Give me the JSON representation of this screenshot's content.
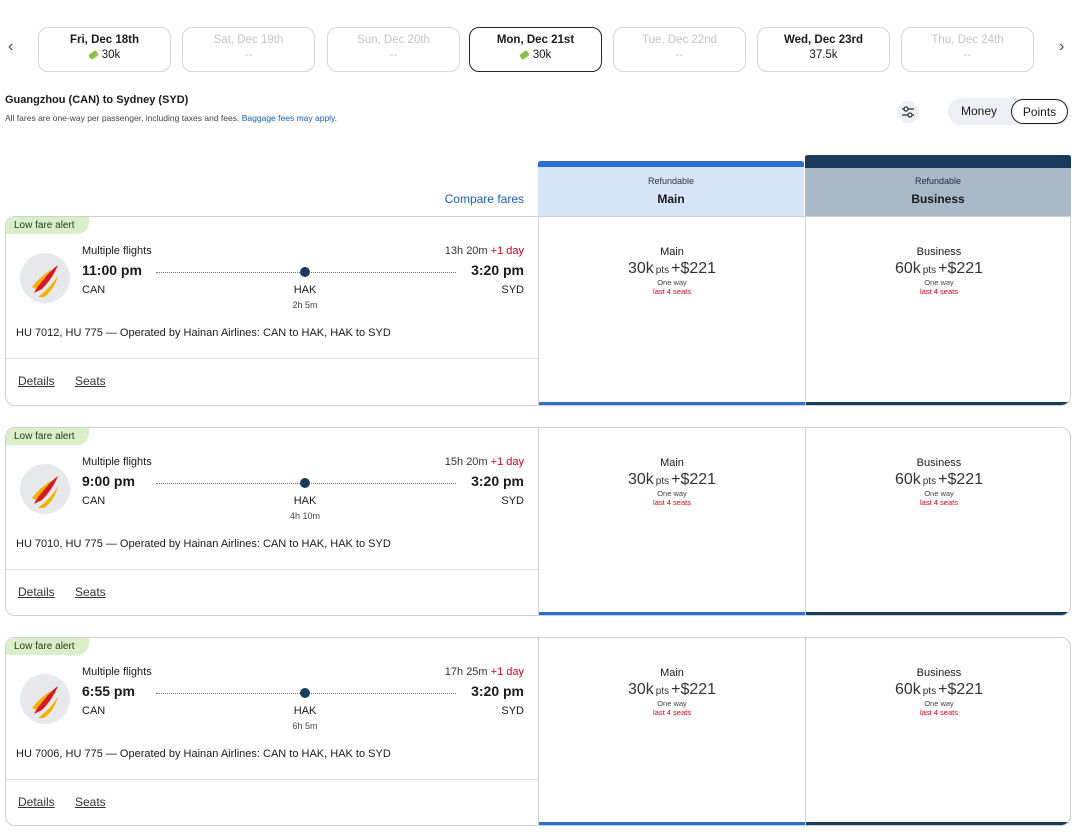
{
  "dates": [
    {
      "day": "Fri, Dec 18th",
      "price": "30k",
      "deal": true,
      "available": true
    },
    {
      "day": "Sat, Dec 19th",
      "price": "--",
      "deal": false,
      "available": false
    },
    {
      "day": "Sun, Dec 20th",
      "price": "--",
      "deal": false,
      "available": false
    },
    {
      "day": "Mon, Dec 21st",
      "price": "30k",
      "deal": true,
      "available": true,
      "selected": true
    },
    {
      "day": "Tue, Dec 22nd",
      "price": "--",
      "deal": false,
      "available": false
    },
    {
      "day": "Wed, Dec 23rd",
      "price": "37.5k",
      "deal": false,
      "available": true
    },
    {
      "day": "Thu, Dec 24th",
      "price": "--",
      "deal": false,
      "available": false
    }
  ],
  "route": {
    "title": "Guangzhou (CAN) to Sydney (SYD)",
    "note": "All fares are one-way per passenger, including taxes and fees.",
    "baggage": "Baggage fees may apply."
  },
  "toggle": {
    "money": "Money",
    "points": "Points"
  },
  "compare": "Compare fares",
  "columns": [
    {
      "label": "Refundable",
      "cabin": "Main"
    },
    {
      "label": "Refundable",
      "cabin": "Business"
    }
  ],
  "flights": [
    {
      "badge": "Low fare alert",
      "type": "Multiple flights",
      "duration": "13h 20m",
      "plus": "+1 day",
      "depart": "11:00 pm",
      "arrive": "3:20 pm",
      "from": "CAN",
      "stop": "HAK",
      "layover": "2h 5m",
      "to": "SYD",
      "operated": "HU 7012, HU 775 — Operated by Hainan Airlines: CAN to HAK, HAK to SYD",
      "details": "Details",
      "seats": "Seats",
      "fares": [
        {
          "cabin": "Main",
          "points": "30k",
          "unit": "pts",
          "money": "+$221",
          "way": "One way",
          "left": "last 4 seats"
        },
        {
          "cabin": "Business",
          "points": "60k",
          "unit": "pts",
          "money": "+$221",
          "way": "One way",
          "left": "last 4 seats"
        }
      ]
    },
    {
      "badge": "Low fare alert",
      "type": "Multiple flights",
      "duration": "15h 20m",
      "plus": "+1 day",
      "depart": "9:00 pm",
      "arrive": "3:20 pm",
      "from": "CAN",
      "stop": "HAK",
      "layover": "4h 10m",
      "to": "SYD",
      "operated": "HU 7010, HU 775 — Operated by Hainan Airlines: CAN to HAK, HAK to SYD",
      "details": "Details",
      "seats": "Seats",
      "fares": [
        {
          "cabin": "Main",
          "points": "30k",
          "unit": "pts",
          "money": "+$221",
          "way": "One way",
          "left": "last 4 seats"
        },
        {
          "cabin": "Business",
          "points": "60k",
          "unit": "pts",
          "money": "+$221",
          "way": "One way",
          "left": "last 4 seats"
        }
      ]
    },
    {
      "badge": "Low fare alert",
      "type": "Multiple flights",
      "duration": "17h 25m",
      "plus": "+1 day",
      "depart": "6:55 pm",
      "arrive": "3:20 pm",
      "from": "CAN",
      "stop": "HAK",
      "layover": "6h 5m",
      "to": "SYD",
      "operated": "HU 7006, HU 775 — Operated by Hainan Airlines: CAN to HAK, HAK to SYD",
      "details": "Details",
      "seats": "Seats",
      "fares": [
        {
          "cabin": "Main",
          "points": "30k",
          "unit": "pts",
          "money": "+$221",
          "way": "One way",
          "left": "last 4 seats"
        },
        {
          "cabin": "Business",
          "points": "60k",
          "unit": "pts",
          "money": "+$221",
          "way": "One way",
          "left": "last 4 seats"
        }
      ]
    }
  ]
}
